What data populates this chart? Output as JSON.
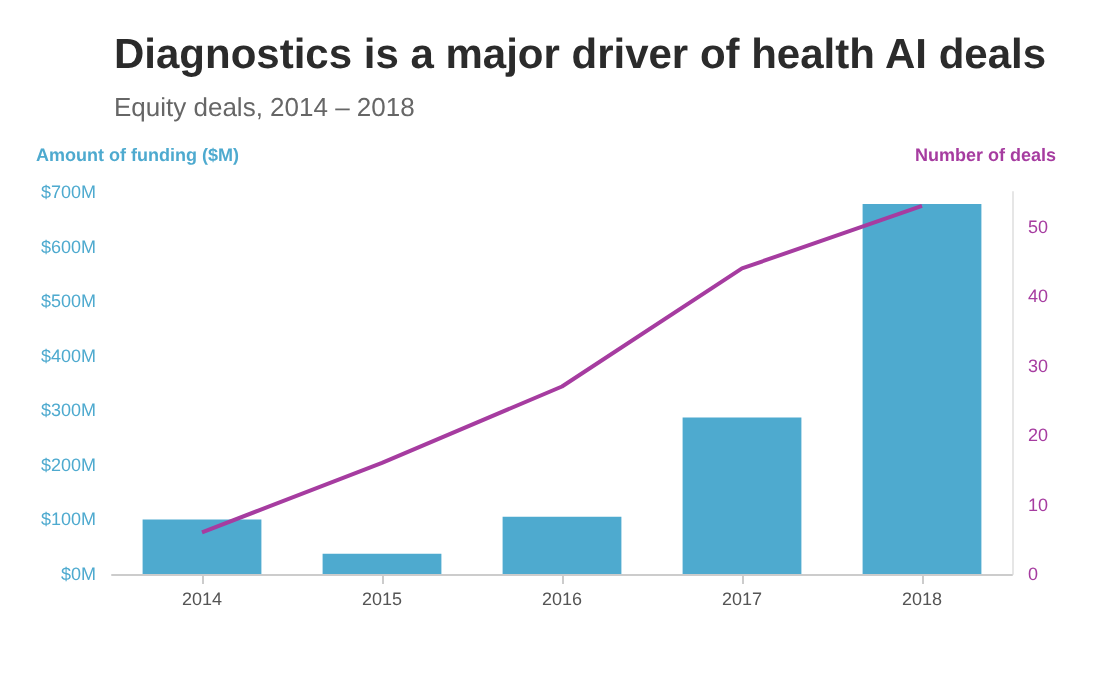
{
  "chart_data": {
    "type": "bar",
    "title": "Diagnostics is a major driver of health AI deals",
    "subtitle": "Equity deals, 2014 – 2018",
    "ylabel": "Amount of funding ($M)",
    "y2label": "Number of deals",
    "categories": [
      "2014",
      "2015",
      "2016",
      "2017",
      "2018"
    ],
    "series": [
      {
        "color": "#4eaacf",
        "values": [
          100,
          37,
          105,
          287,
          678
        ]
      },
      {
        "type": "line",
        "axis": "y2",
        "color": "#a63ca0",
        "values": [
          6,
          16,
          27,
          44,
          53
        ]
      }
    ],
    "ylim": [
      0,
      700
    ],
    "yticks": [
      {
        "value": 0,
        "label": "$0M"
      },
      {
        "value": 100,
        "label": "$100M"
      },
      {
        "value": 200,
        "label": "$200M"
      },
      {
        "value": 300,
        "label": "$300M"
      },
      {
        "value": 400,
        "label": "$400M"
      },
      {
        "value": 500,
        "label": "$500M"
      },
      {
        "value": 600,
        "label": "$600M"
      },
      {
        "value": 700,
        "label": "$700M"
      }
    ],
    "y2lim": [
      0,
      55
    ],
    "y2ticks": [
      0,
      10,
      20,
      30,
      40,
      50
    ],
    "grid": false,
    "marker": "none",
    "line_style": "solid"
  }
}
